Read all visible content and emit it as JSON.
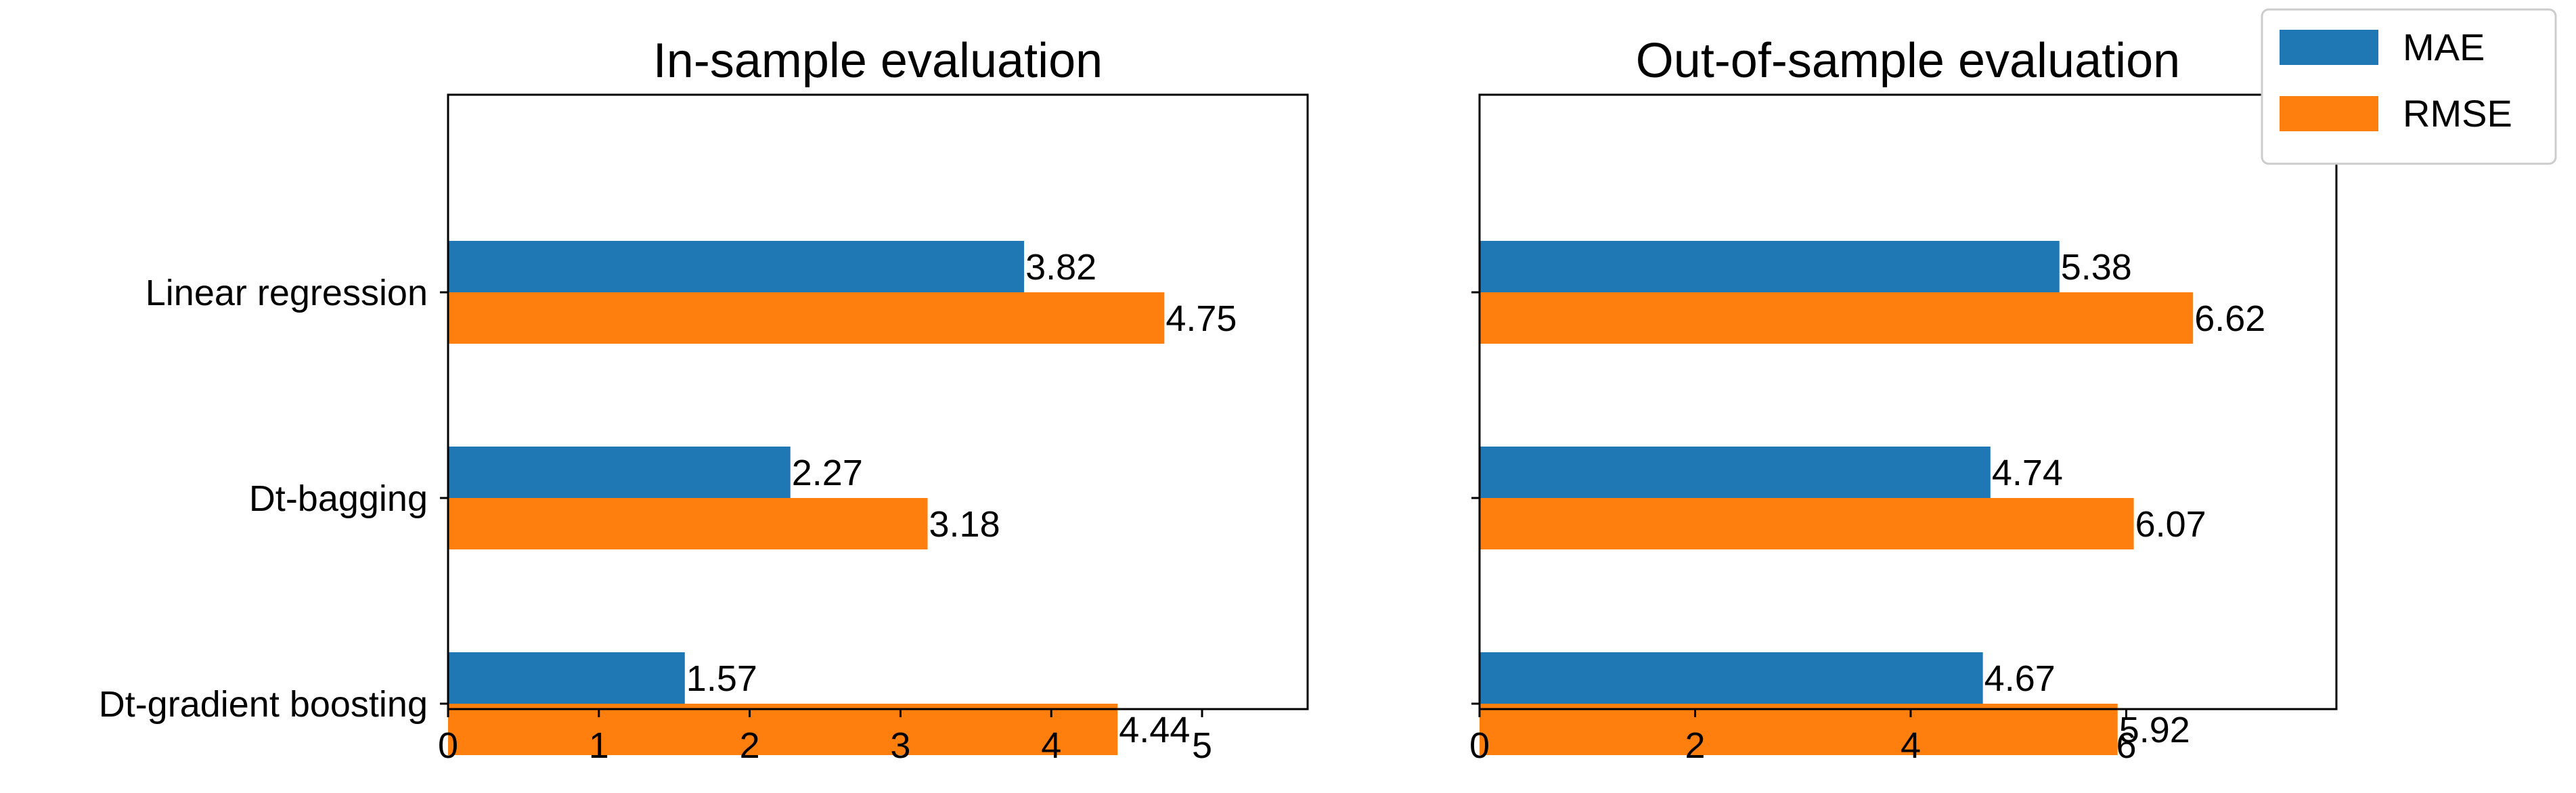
{
  "chart_data": [
    {
      "type": "bar",
      "orientation": "horizontal",
      "title": "In-sample evaluation",
      "categories": [
        "Linear regression",
        "Dt-bagging",
        "Dt-gradient boosting"
      ],
      "series": [
        {
          "name": "MAE",
          "values": [
            3.82,
            2.27,
            1.57
          ]
        },
        {
          "name": "RMSE",
          "values": [
            4.75,
            3.18,
            4.44
          ]
        }
      ],
      "xlim": [
        0,
        5.7
      ],
      "xticks": [
        0,
        1,
        2,
        3,
        4,
        5
      ],
      "xlabel": "",
      "ylabel": "",
      "grid": false
    },
    {
      "type": "bar",
      "orientation": "horizontal",
      "title": "Out-of-sample evaluation",
      "categories": [
        "Linear regression",
        "Dt-bagging",
        "Dt-gradient boosting"
      ],
      "series": [
        {
          "name": "MAE",
          "values": [
            5.38,
            4.74,
            4.67
          ]
        },
        {
          "name": "RMSE",
          "values": [
            6.62,
            6.07,
            5.92
          ]
        }
      ],
      "xlim": [
        0,
        7.95
      ],
      "xticks": [
        0,
        2,
        4,
        6
      ],
      "xlabel": "",
      "ylabel": "",
      "grid": false
    }
  ],
  "legend": {
    "placement": "top-right",
    "entries": [
      {
        "label": "MAE",
        "color": "#1f77b4"
      },
      {
        "label": "RMSE",
        "color": "#ff7f0e"
      }
    ]
  },
  "colors": {
    "MAE": "#1f77b4",
    "RMSE": "#ff7f0e"
  }
}
